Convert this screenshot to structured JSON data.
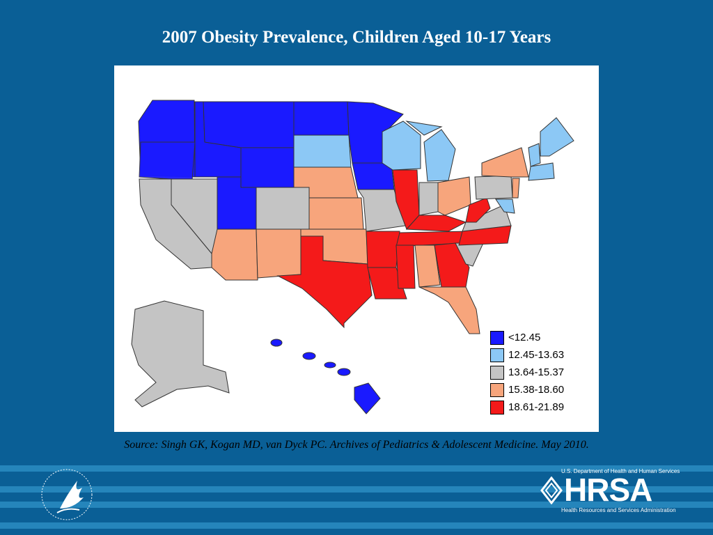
{
  "title": "2007 Obesity Prevalence, Children Aged 10-17 Years",
  "source": "Source: Singh GK, Kogan MD, van Dyck PC. Archives of Pediatrics & Adolescent Medicine. May 2010.",
  "legend": [
    {
      "label": "<12.45",
      "color": "#1a1aff"
    },
    {
      "label": "12.45-13.63",
      "color": "#8cc8f5"
    },
    {
      "label": "13.64-15.37",
      "color": "#c4c4c4"
    },
    {
      "label": "15.38-18.60",
      "color": "#f7a57c"
    },
    {
      "label": "18.61-21.89",
      "color": "#f41a1a"
    }
  ],
  "colors": {
    "background": "#0a5f96",
    "stripe": "#2585bb"
  },
  "footer": {
    "hhs_logo": "hhs-eagle-icon",
    "hrsa_top": "U.S. Department of Health and Human Services",
    "hrsa_word": "HRSA",
    "hrsa_bottom": "Health Resources and Services Administration"
  }
}
